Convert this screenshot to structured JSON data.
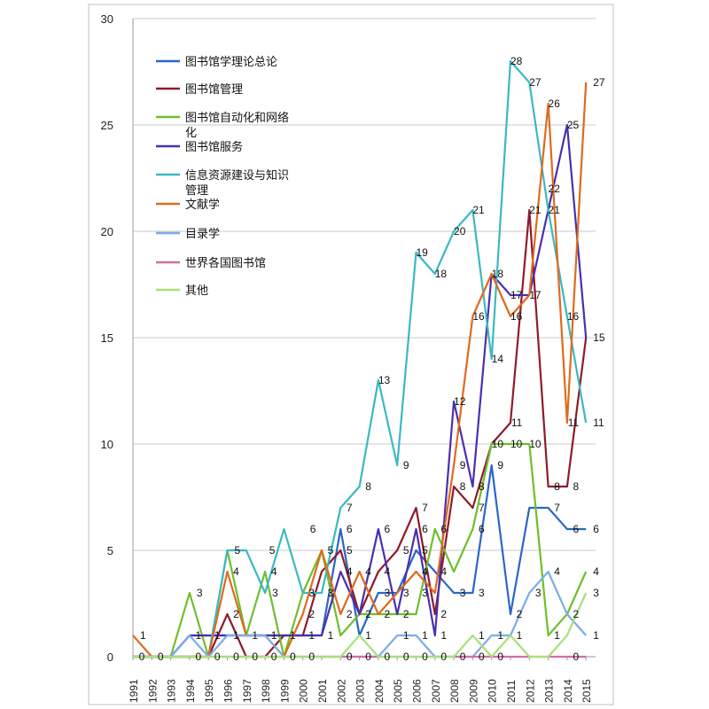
{
  "chart_data": {
    "type": "line",
    "title": "",
    "xlabel": "",
    "ylabel": "",
    "ylim": [
      0,
      30
    ],
    "yticks": [
      0,
      5,
      10,
      15,
      20,
      25,
      30
    ],
    "grid": "horizontal",
    "legend_position": "top-left",
    "x": [
      "1991",
      "1992",
      "1993",
      "1994",
      "1995",
      "1996",
      "1997",
      "1998",
      "1999",
      "2000",
      "2001",
      "2002",
      "2003",
      "2004",
      "2005",
      "2006",
      "2007",
      "2008",
      "2009",
      "2010",
      "2011",
      "2012",
      "2013",
      "2014",
      "2015"
    ],
    "series": [
      {
        "name": "图书馆学理论总论",
        "color": "#2a66c8",
        "values": [
          0,
          0,
          0,
          1,
          1,
          1,
          1,
          1,
          1,
          1,
          1,
          6,
          1,
          3,
          3,
          5,
          4,
          3,
          3,
          9,
          2,
          7,
          7,
          6,
          6
        ]
      },
      {
        "name": "图书馆管理",
        "color": "#8e1b2c",
        "values": [
          0,
          0,
          0,
          0,
          0,
          2,
          0,
          0,
          1,
          1,
          4,
          5,
          2,
          4,
          5,
          7,
          2,
          8,
          7,
          10,
          11,
          21,
          8,
          8,
          15
        ]
      },
      {
        "name": "图书馆自动化和网络\n化",
        "color": "#6fbe2c",
        "values": [
          0,
          0,
          0,
          3,
          0,
          5,
          1,
          4,
          0,
          3,
          5,
          1,
          2,
          2,
          2,
          2,
          6,
          4,
          6,
          10,
          10,
          10,
          1,
          2,
          4
        ]
      },
      {
        "name": "图书馆服务",
        "color": "#4a2fb0",
        "values": [
          0,
          0,
          0,
          1,
          1,
          1,
          1,
          1,
          1,
          1,
          1,
          4,
          2,
          6,
          2,
          6,
          1,
          12,
          8,
          18,
          17,
          17,
          21,
          25,
          15
        ]
      },
      {
        "name": "信息资源建设与知识\n管理",
        "color": "#3bb8c2",
        "values": [
          0,
          0,
          0,
          0,
          0,
          5,
          5,
          3,
          6,
          3,
          3,
          7,
          8,
          13,
          9,
          19,
          18,
          20,
          21,
          14,
          28,
          27,
          21,
          16,
          11
        ]
      },
      {
        "name": "文献学",
        "color": "#e06a1d",
        "values": [
          1,
          0,
          0,
          0,
          0,
          4,
          1,
          1,
          0,
          2,
          5,
          2,
          4,
          2,
          3,
          4,
          3,
          9,
          16,
          18,
          16,
          17,
          26,
          11,
          27
        ]
      },
      {
        "name": "目录学",
        "color": "#7aaee8",
        "values": [
          0,
          0,
          0,
          1,
          0,
          1,
          1,
          1,
          0,
          0,
          0,
          0,
          0,
          0,
          1,
          1,
          0,
          0,
          0,
          1,
          1,
          3,
          4,
          2,
          1
        ]
      },
      {
        "name": "世界各国图书馆",
        "color": "#d06fa8",
        "values": [
          0,
          0,
          0,
          0,
          0,
          0,
          0,
          0,
          0,
          0,
          0,
          0,
          0,
          0,
          0,
          0,
          0,
          0,
          0,
          0,
          0,
          0,
          0,
          0,
          0
        ]
      },
      {
        "name": "其他",
        "color": "#a8e07a",
        "values": [
          0,
          0,
          0,
          0,
          0,
          0,
          0,
          0,
          0,
          0,
          0,
          0,
          1,
          0,
          0,
          0,
          0,
          0,
          1,
          0,
          1,
          0,
          0,
          1,
          3
        ]
      }
    ],
    "annotations": [
      {
        "t": "1",
        "x": "1991",
        "y": 1,
        "o": "r"
      },
      {
        "t": "0",
        "x": "1992",
        "y": 0,
        "o": "l"
      },
      {
        "t": "0",
        "x": "1993",
        "y": 0,
        "o": "l"
      },
      {
        "t": "3",
        "x": "1994",
        "y": 3,
        "o": "r"
      },
      {
        "t": "1",
        "x": "1995",
        "y": 1,
        "o": "l"
      },
      {
        "t": "0",
        "x": "1995",
        "y": 0,
        "o": "l"
      },
      {
        "t": "5",
        "x": "1996",
        "y": 5,
        "o": "r"
      },
      {
        "t": "1",
        "x": "1996",
        "y": 1,
        "o": "l"
      },
      {
        "t": "0",
        "x": "1996",
        "y": 0,
        "o": "l"
      },
      {
        "t": "5",
        "x": "1997",
        "y": 5,
        "o": "r2"
      },
      {
        "t": "4",
        "x": "1997",
        "y": 4,
        "o": "l"
      },
      {
        "t": "2",
        "x": "1997",
        "y": 2,
        "o": "l"
      },
      {
        "t": "1",
        "x": "1997",
        "y": 1,
        "o": "l"
      },
      {
        "t": "0",
        "x": "1997",
        "y": 0,
        "o": "l"
      },
      {
        "t": "3",
        "x": "1998",
        "y": 3,
        "o": "r"
      },
      {
        "t": "1",
        "x": "1998",
        "y": 1,
        "o": "l"
      },
      {
        "t": "0",
        "x": "1998",
        "y": 0,
        "o": "l"
      },
      {
        "t": "4",
        "x": "1999",
        "y": 4,
        "o": "l"
      },
      {
        "t": "1",
        "x": "1999",
        "y": 1,
        "o": "l"
      },
      {
        "t": "0",
        "x": "1999",
        "y": 0,
        "o": "l"
      },
      {
        "t": "6",
        "x": "2000",
        "y": 6,
        "o": "r"
      },
      {
        "t": "1",
        "x": "2000",
        "y": 1,
        "o": "l"
      },
      {
        "t": "0",
        "x": "2000",
        "y": 0,
        "o": "l"
      },
      {
        "t": "3",
        "x": "2001",
        "y": 3,
        "o": "l"
      },
      {
        "t": "2",
        "x": "2001",
        "y": 2,
        "o": "l"
      },
      {
        "t": "1",
        "x": "2001",
        "y": 1,
        "o": "l"
      },
      {
        "t": "0",
        "x": "2001",
        "y": 0,
        "o": "l"
      },
      {
        "t": "5",
        "x": "2002",
        "y": 5,
        "o": "l"
      },
      {
        "t": "3",
        "x": "2002",
        "y": 3,
        "o": "l"
      },
      {
        "t": "1",
        "x": "2002",
        "y": 1,
        "o": "l"
      },
      {
        "t": "7",
        "x": "2003",
        "y": 7,
        "o": "l"
      },
      {
        "t": "6",
        "x": "2003",
        "y": 6,
        "o": "l"
      },
      {
        "t": "5",
        "x": "2003",
        "y": 5,
        "o": "l"
      },
      {
        "t": "4",
        "x": "2003",
        "y": 4,
        "o": "l"
      },
      {
        "t": "2",
        "x": "2003",
        "y": 2,
        "o": "l"
      },
      {
        "t": "0",
        "x": "2003",
        "y": 0,
        "o": "l"
      },
      {
        "t": "8",
        "x": "2004",
        "y": 8,
        "o": "l"
      },
      {
        "t": "4",
        "x": "2004",
        "y": 4,
        "o": "l"
      },
      {
        "t": "2",
        "x": "2004",
        "y": 2,
        "o": "l"
      },
      {
        "t": "1",
        "x": "2004",
        "y": 1,
        "o": "l"
      },
      {
        "t": "0",
        "x": "2004",
        "y": 0,
        "o": "l"
      },
      {
        "t": "13",
        "x": "2005",
        "y": 13,
        "o": "l"
      },
      {
        "t": "6",
        "x": "2005",
        "y": 6,
        "o": "l"
      },
      {
        "t": "4",
        "x": "2005",
        "y": 4,
        "o": "l"
      },
      {
        "t": "3",
        "x": "2005",
        "y": 3,
        "o": "l"
      },
      {
        "t": "2",
        "x": "2005",
        "y": 2,
        "o": "l"
      },
      {
        "t": "0",
        "x": "2005",
        "y": 0,
        "o": "l"
      },
      {
        "t": "9",
        "x": "2006",
        "y": 9,
        "o": "l"
      },
      {
        "t": "5",
        "x": "2006",
        "y": 5,
        "o": "l"
      },
      {
        "t": "3",
        "x": "2006",
        "y": 3,
        "o": "l"
      },
      {
        "t": "2",
        "x": "2006",
        "y": 2,
        "o": "l"
      },
      {
        "t": "1",
        "x": "2006",
        "y": 1,
        "o": "l"
      },
      {
        "t": "0",
        "x": "2006",
        "y": 0,
        "o": "l"
      },
      {
        "t": "19",
        "x": "2007",
        "y": 19,
        "o": "l"
      },
      {
        "t": "7",
        "x": "2007",
        "y": 7,
        "o": "l"
      },
      {
        "t": "6",
        "x": "2007",
        "y": 6,
        "o": "l"
      },
      {
        "t": "5",
        "x": "2007",
        "y": 5,
        "o": "l"
      },
      {
        "t": "4",
        "x": "2007",
        "y": 4,
        "o": "l"
      },
      {
        "t": "3",
        "x": "2007",
        "y": 3,
        "o": "l"
      },
      {
        "t": "1",
        "x": "2007",
        "y": 1,
        "o": "l"
      },
      {
        "t": "0",
        "x": "2007",
        "y": 0,
        "o": "l"
      },
      {
        "t": "18",
        "x": "2008",
        "y": 18,
        "o": "l"
      },
      {
        "t": "6",
        "x": "2008",
        "y": 6,
        "o": "l"
      },
      {
        "t": "4",
        "x": "2008",
        "y": 4,
        "o": "l"
      },
      {
        "t": "2",
        "x": "2008",
        "y": 2,
        "o": "l"
      },
      {
        "t": "1",
        "x": "2008",
        "y": 1,
        "o": "l"
      },
      {
        "t": "0",
        "x": "2008",
        "y": 0,
        "o": "l"
      },
      {
        "t": "20",
        "x": "2009",
        "y": 20,
        "o": "l"
      },
      {
        "t": "12",
        "x": "2009",
        "y": 12,
        "o": "l"
      },
      {
        "t": "9",
        "x": "2009",
        "y": 9,
        "o": "l"
      },
      {
        "t": "8",
        "x": "2009",
        "y": 8,
        "o": "l"
      },
      {
        "t": "3",
        "x": "2009",
        "y": 3,
        "o": "l"
      },
      {
        "t": "0",
        "x": "2009",
        "y": 0,
        "o": "l"
      },
      {
        "t": "21",
        "x": "2010",
        "y": 21,
        "o": "l"
      },
      {
        "t": "16",
        "x": "2010",
        "y": 16,
        "o": "l"
      },
      {
        "t": "8",
        "x": "2010",
        "y": 8,
        "o": "l"
      },
      {
        "t": "7",
        "x": "2010",
        "y": 7,
        "o": "l"
      },
      {
        "t": "6",
        "x": "2010",
        "y": 6,
        "o": "l"
      },
      {
        "t": "3",
        "x": "2010",
        "y": 3,
        "o": "l"
      },
      {
        "t": "1",
        "x": "2010",
        "y": 1,
        "o": "l"
      },
      {
        "t": "0",
        "x": "2010",
        "y": 0,
        "o": "l"
      },
      {
        "t": "18",
        "x": "2011",
        "y": 18,
        "o": "l"
      },
      {
        "t": "14",
        "x": "2011",
        "y": 14,
        "o": "l"
      },
      {
        "t": "10",
        "x": "2011",
        "y": 10,
        "o": "l"
      },
      {
        "t": "9",
        "x": "2011",
        "y": 9,
        "o": "l"
      },
      {
        "t": "1",
        "x": "2011",
        "y": 1,
        "o": "l"
      },
      {
        "t": "0",
        "x": "2011",
        "y": 0,
        "o": "l"
      },
      {
        "t": "28",
        "x": "2012",
        "y": 28,
        "o": "l"
      },
      {
        "t": "17",
        "x": "2012",
        "y": 17,
        "o": "l"
      },
      {
        "t": "16",
        "x": "2012",
        "y": 16,
        "o": "l"
      },
      {
        "t": "11",
        "x": "2012",
        "y": 11,
        "o": "l"
      },
      {
        "t": "10",
        "x": "2012",
        "y": 10,
        "o": "l"
      },
      {
        "t": "2",
        "x": "2012",
        "y": 2,
        "o": "l"
      },
      {
        "t": "1",
        "x": "2012",
        "y": 1,
        "o": "l"
      },
      {
        "t": "27",
        "x": "2013",
        "y": 27,
        "o": "l"
      },
      {
        "t": "21",
        "x": "2013",
        "y": 21,
        "o": "l"
      },
      {
        "t": "17",
        "x": "2013",
        "y": 17,
        "o": "l"
      },
      {
        "t": "10",
        "x": "2013",
        "y": 10,
        "o": "l"
      },
      {
        "t": "3",
        "x": "2013",
        "y": 3,
        "o": "l"
      },
      {
        "t": "26",
        "x": "2014",
        "y": 26,
        "o": "l"
      },
      {
        "t": "22",
        "x": "2014",
        "y": 22,
        "o": "l"
      },
      {
        "t": "21",
        "x": "2014",
        "y": 21,
        "o": "l"
      },
      {
        "t": "8",
        "x": "2014",
        "y": 8,
        "o": "l"
      },
      {
        "t": "7",
        "x": "2014",
        "y": 7,
        "o": "l"
      },
      {
        "t": "4",
        "x": "2014",
        "y": 4,
        "o": "l"
      },
      {
        "t": "1",
        "x": "2014",
        "y": 1,
        "o": "l"
      },
      {
        "t": "25",
        "x": "2015",
        "y": 25,
        "o": "l"
      },
      {
        "t": "16",
        "x": "2015",
        "y": 16,
        "o": "l"
      },
      {
        "t": "11",
        "x": "2015",
        "y": 11,
        "o": "l"
      },
      {
        "t": "8",
        "x": "2015",
        "y": 8,
        "o": "l"
      },
      {
        "t": "6",
        "x": "2015",
        "y": 6,
        "o": "l"
      },
      {
        "t": "2",
        "x": "2015",
        "y": 2,
        "o": "l"
      },
      {
        "t": "0",
        "x": "2015",
        "y": 0,
        "o": "l"
      },
      {
        "t": "27",
        "x": "2015",
        "y": 27,
        "o": "r"
      },
      {
        "t": "15",
        "x": "2015",
        "y": 15,
        "o": "r"
      },
      {
        "t": "11",
        "x": "2015",
        "y": 11,
        "o": "r"
      },
      {
        "t": "6",
        "x": "2015",
        "y": 6,
        "o": "r"
      },
      {
        "t": "4",
        "x": "2015",
        "y": 4,
        "o": "r"
      },
      {
        "t": "3",
        "x": "2015",
        "y": 3,
        "o": "r"
      },
      {
        "t": "1",
        "x": "2015",
        "y": 1,
        "o": "r"
      }
    ]
  }
}
